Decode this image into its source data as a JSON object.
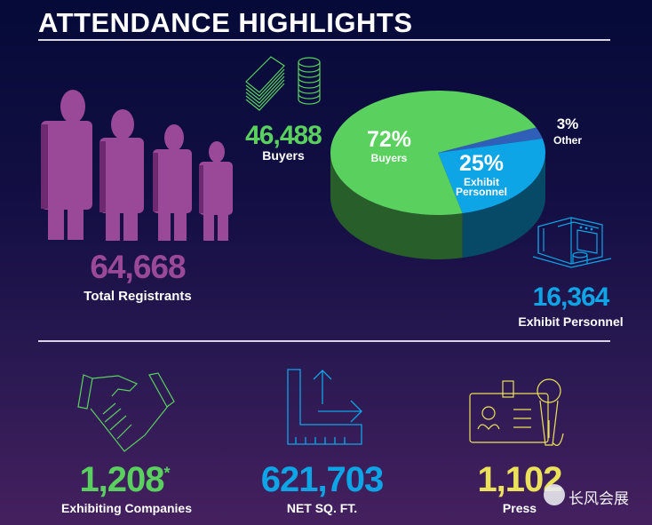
{
  "title": "ATTENDANCE HIGHLIGHTS",
  "colors": {
    "green": "#5ad15f",
    "blue": "#0ea5e6",
    "purple": "#9a4898",
    "yellow": "#ece25a",
    "other": "#2f5fb8"
  },
  "stats": {
    "buyers": {
      "value": "46,488",
      "label": "Buyers",
      "icon": "money-coins-icon"
    },
    "total": {
      "value": "64,668",
      "label": "Total Registrants",
      "icon": "people-icon"
    },
    "exhibit": {
      "value": "16,364",
      "label": "Exhibit Personnel",
      "icon": "booth-icon"
    },
    "companies": {
      "value": "1,208",
      "asterisk": "*",
      "label": "Exhibiting Companies",
      "icon": "handshake-icon"
    },
    "sqft": {
      "value": "621,703",
      "label": "NET SQ. FT.",
      "icon": "ruler-square-icon"
    },
    "press": {
      "value": "1,102",
      "label": "Press",
      "icon": "badge-microphone-icon"
    }
  },
  "chart_data": {
    "type": "pie",
    "title": "",
    "slices": [
      {
        "name": "Other",
        "label_pct": "3%",
        "label": "Other",
        "value": 3,
        "color": "#2f5fb8"
      },
      {
        "name": "Exhibit Personnel",
        "label_pct": "25%",
        "label": "Exhibit Personnel",
        "label_line1": "Exhibit",
        "label_line2": "Personnel",
        "value": 25,
        "color": "#0ea5e6"
      },
      {
        "name": "Buyers",
        "label_pct": "72%",
        "label": "Buyers",
        "value": 72,
        "color": "#5ad15f"
      }
    ]
  },
  "watermark": "长风会展"
}
